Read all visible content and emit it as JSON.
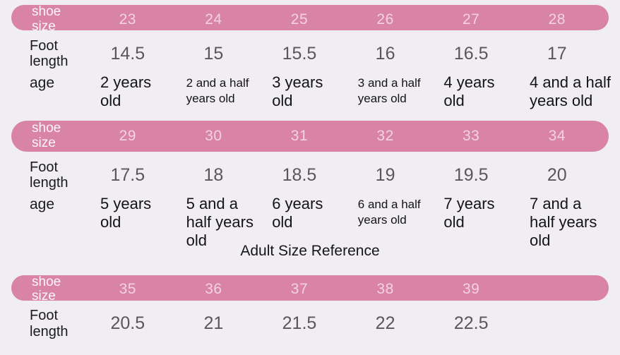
{
  "colors": {
    "background": "#f0eef0",
    "bar_pink": "#d983a6",
    "bar_number_text": "#f3d3e2",
    "bar_label_text": "#fdf4f8",
    "foot_value_gray": "#59565c",
    "text_black": "#1b1a1c"
  },
  "adult_title": "Adult Size Reference",
  "tables": [
    {
      "shoe_size_label": "shoe size",
      "foot_length_label": "Foot\nlength",
      "age_label": "age",
      "sizes": [
        "23",
        "24",
        "25",
        "26",
        "27",
        "28"
      ],
      "foot_lengths": [
        "14.5",
        "15",
        "15.5",
        "16",
        "16.5",
        "17"
      ],
      "ages": [
        "2 years\nold",
        "2 and a half\nyears old",
        "3 years\nold",
        "3 and a half\nyears old",
        "4 years\nold",
        "4 and a half\nyears old"
      ]
    },
    {
      "shoe_size_label": "shoe\nsize",
      "foot_length_label": "Foot\nlength",
      "age_label": "age",
      "sizes": [
        "29",
        "30",
        "31",
        "32",
        "33",
        "34"
      ],
      "foot_lengths": [
        "17.5",
        "18",
        "18.5",
        "19",
        "19.5",
        "20"
      ],
      "ages": [
        "5 years\nold",
        "5 and a\nhalf years\nold",
        "6 years\nold",
        "6 and a half\nyears old",
        "7 years\nold",
        "7 and a\nhalf years\nold"
      ]
    },
    {
      "shoe_size_label": "shoe size",
      "foot_length_label": "Foot\nlength",
      "sizes": [
        "35",
        "36",
        "37",
        "38",
        "39"
      ],
      "foot_lengths": [
        "20.5",
        "21",
        "21.5",
        "22",
        "22.5"
      ]
    }
  ],
  "chart_data": [
    {
      "type": "table",
      "title": "Children size reference (part 1)",
      "header": [
        "shoe size",
        "23",
        "24",
        "25",
        "26",
        "27",
        "28"
      ],
      "rows": [
        [
          "Foot length",
          "14.5",
          "15",
          "15.5",
          "16",
          "16.5",
          "17"
        ],
        [
          "age",
          "2 years old",
          "2 and a half years old",
          "3 years old",
          "3 and a half years old",
          "4 years old",
          "4 and a half years old"
        ]
      ]
    },
    {
      "type": "table",
      "title": "Children size reference (part 2)",
      "header": [
        "shoe size",
        "29",
        "30",
        "31",
        "32",
        "33",
        "34"
      ],
      "rows": [
        [
          "Foot length",
          "17.5",
          "18",
          "18.5",
          "19",
          "19.5",
          "20"
        ],
        [
          "age",
          "5 years old",
          "5 and a half years old",
          "6 years old",
          "6 and a half years old",
          "7 years old",
          "7 and a half years old"
        ]
      ]
    },
    {
      "type": "table",
      "title": "Adult Size Reference",
      "header": [
        "shoe size",
        "35",
        "36",
        "37",
        "38",
        "39"
      ],
      "rows": [
        [
          "Foot length",
          "20.5",
          "21",
          "21.5",
          "22",
          "22.5"
        ]
      ]
    }
  ]
}
